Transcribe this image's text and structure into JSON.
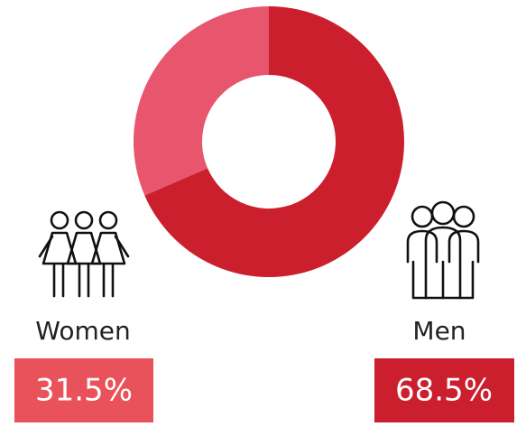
{
  "chart_data": {
    "type": "donut",
    "categories": [
      "Women",
      "Men"
    ],
    "values": [
      31.5,
      68.5
    ],
    "value_labels": [
      "31.5%",
      "68.5%"
    ],
    "colors": [
      "#e8566e",
      "#cc1f2e"
    ],
    "box_colors": [
      "#e9525a",
      "#cc1f2e"
    ]
  }
}
